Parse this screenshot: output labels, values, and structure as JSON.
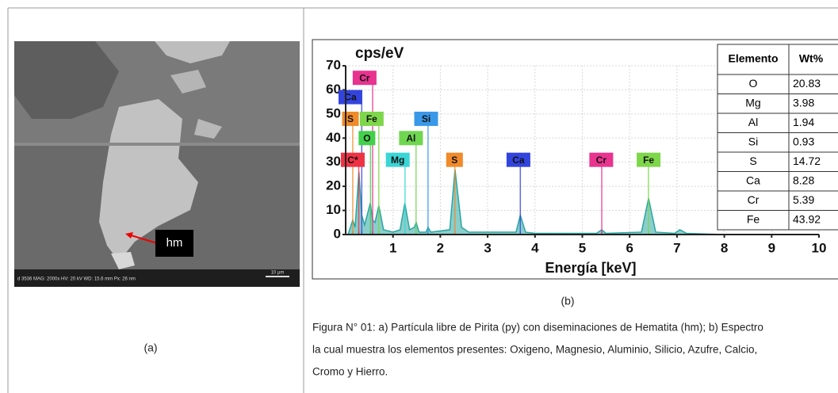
{
  "left_panel": {
    "sem_info": "d 3536   MAG: 2000x   HV: 20 kV   WD: 15.6 mm   Px: 26 nm",
    "scale_bar": "10 µm",
    "arrow_label": "hm",
    "caption": "(a)"
  },
  "chart_data": {
    "type": "line",
    "y_label": "cps/eV",
    "x_label": "Energía [keV]",
    "xlim": [
      0,
      10
    ],
    "ylim": [
      0,
      70
    ],
    "xticks": [
      1,
      2,
      3,
      4,
      5,
      6,
      7,
      8,
      9,
      10
    ],
    "yticks": [
      0,
      10,
      20,
      30,
      40,
      50,
      60,
      70
    ],
    "grid": true,
    "color": "#2aa6a0",
    "x": [
      0.05,
      0.15,
      0.2,
      0.28,
      0.34,
      0.4,
      0.52,
      0.57,
      0.62,
      0.7,
      0.8,
      1.0,
      1.15,
      1.25,
      1.35,
      1.45,
      1.49,
      1.55,
      1.7,
      1.74,
      1.8,
      2.2,
      2.31,
      2.45,
      2.6,
      3.6,
      3.69,
      3.8,
      4.0,
      5.3,
      5.41,
      5.5,
      6.25,
      6.4,
      6.55,
      6.95,
      7.06,
      7.2,
      8,
      9,
      10
    ],
    "values": [
      0,
      6,
      3,
      26,
      8,
      4,
      13,
      6,
      5,
      12,
      2,
      1,
      2,
      13,
      2,
      3,
      5,
      1,
      1,
      3,
      1,
      2,
      27,
      3,
      1,
      1,
      8,
      1,
      0.5,
      0.5,
      2,
      0.5,
      1,
      15,
      1,
      0.5,
      2,
      0.5,
      0,
      0,
      0
    ],
    "element_markers": [
      {
        "name": "Cr",
        "energy": 0.57,
        "color": "#e8338f"
      },
      {
        "name": "Ca",
        "energy": 0.34,
        "color": "#3344dd"
      },
      {
        "name": "S",
        "energy": 0.15,
        "color": "#f08a2a"
      },
      {
        "name": "Fe",
        "energy": 0.7,
        "color": "#7ed64a"
      },
      {
        "name": "Si",
        "energy": 1.74,
        "color": "#3a98e8"
      },
      {
        "name": "O",
        "energy": 0.525,
        "color": "#42d04a"
      },
      {
        "name": "Al",
        "energy": 1.487,
        "color": "#6fd650"
      },
      {
        "name": "C*",
        "energy": 0.277,
        "color": "#ee3344"
      },
      {
        "name": "Mg",
        "energy": 1.254,
        "color": "#3ad6d6"
      },
      {
        "name": "S",
        "energy": 2.307,
        "color": "#f08a2a"
      },
      {
        "name": "Ca",
        "energy": 3.69,
        "color": "#3344dd"
      },
      {
        "name": "Cr",
        "energy": 5.411,
        "color": "#e8338f"
      },
      {
        "name": "Fe",
        "energy": 6.398,
        "color": "#7ed64a"
      }
    ]
  },
  "table": {
    "header": [
      "Elemento",
      "Wt%"
    ],
    "rows": [
      [
        "O",
        20.83
      ],
      [
        "Mg",
        3.98
      ],
      [
        "Al",
        1.94
      ],
      [
        "Si",
        0.93
      ],
      [
        "S",
        14.72
      ],
      [
        "Ca",
        8.28
      ],
      [
        "Cr",
        5.39
      ],
      [
        "Fe",
        43.92
      ]
    ]
  },
  "panel_b_caption": "(b)",
  "caption": [
    "Figura N° 01: a) Partícula libre de Pirita (py) con diseminaciones de Hematita (hm); b) Espectro",
    "la cual muestra los elementos presentes: Oxigeno, Magnesio, Aluminio, Silicio, Azufre, Calcio,",
    "Cromo y Hierro."
  ]
}
